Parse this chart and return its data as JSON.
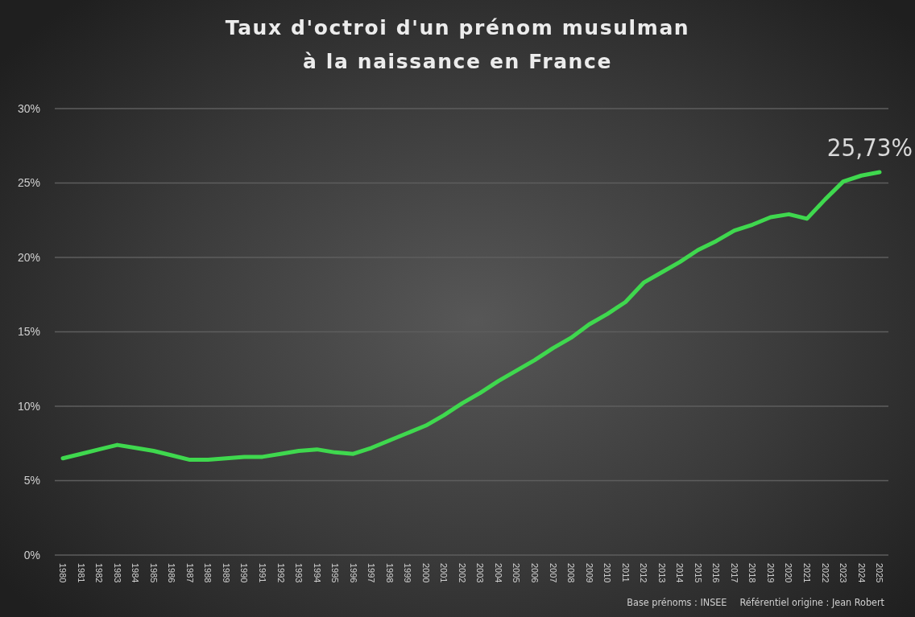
{
  "chart_data": {
    "type": "line",
    "title": "Taux d'octroi d'un prénom musulman\nà la naissance en France",
    "categories": [
      "1980",
      "1981",
      "1982",
      "1983",
      "1984",
      "1985",
      "1986",
      "1987",
      "1988",
      "1989",
      "1990",
      "1991",
      "1992",
      "1993",
      "1994",
      "1995",
      "1996",
      "1997",
      "1998",
      "1999",
      "2000",
      "2001",
      "2002",
      "2003",
      "2004",
      "2005",
      "2006",
      "2007",
      "2008",
      "2009",
      "2010",
      "2011",
      "2012",
      "2013",
      "2014",
      "2015",
      "2016",
      "2017",
      "2018",
      "2019",
      "2020",
      "2021",
      "2022",
      "2023",
      "2024",
      "2025"
    ],
    "values": [
      6.5,
      6.8,
      7.1,
      7.4,
      7.2,
      7.0,
      6.7,
      6.4,
      6.4,
      6.5,
      6.6,
      6.6,
      6.8,
      7.0,
      7.1,
      6.9,
      6.8,
      7.2,
      7.7,
      8.2,
      8.7,
      9.4,
      10.2,
      10.9,
      11.7,
      12.4,
      13.1,
      13.9,
      14.6,
      15.5,
      16.2,
      17.0,
      18.3,
      19.0,
      19.7,
      20.5,
      21.1,
      21.8,
      22.2,
      22.7,
      22.9,
      22.6,
      23.9,
      25.1,
      25.5,
      25.73
    ],
    "color": "#3fd84e",
    "value_labels": [
      null,
      null,
      null,
      null,
      null,
      null,
      null,
      null,
      null,
      null,
      null,
      null,
      null,
      null,
      null,
      null,
      null,
      null,
      null,
      null,
      null,
      null,
      null,
      null,
      null,
      null,
      null,
      null,
      null,
      null,
      null,
      null,
      null,
      null,
      null,
      null,
      null,
      null,
      null,
      null,
      null,
      null,
      null,
      null,
      null,
      "25,73%"
    ],
    "ylim": [
      0,
      30
    ],
    "yticks": [
      {
        "value": 0,
        "label": "0%"
      },
      {
        "value": 5,
        "label": "5%"
      },
      {
        "value": 10,
        "label": "10%"
      },
      {
        "value": 15,
        "label": "15%"
      },
      {
        "value": 20,
        "label": "20%"
      },
      {
        "value": 25,
        "label": "25%"
      },
      {
        "value": 30,
        "label": "30%"
      }
    ],
    "grid": "y",
    "annotations": [
      "Base prénoms : INSEE",
      "Référentiel origine : Jean Robert"
    ]
  }
}
